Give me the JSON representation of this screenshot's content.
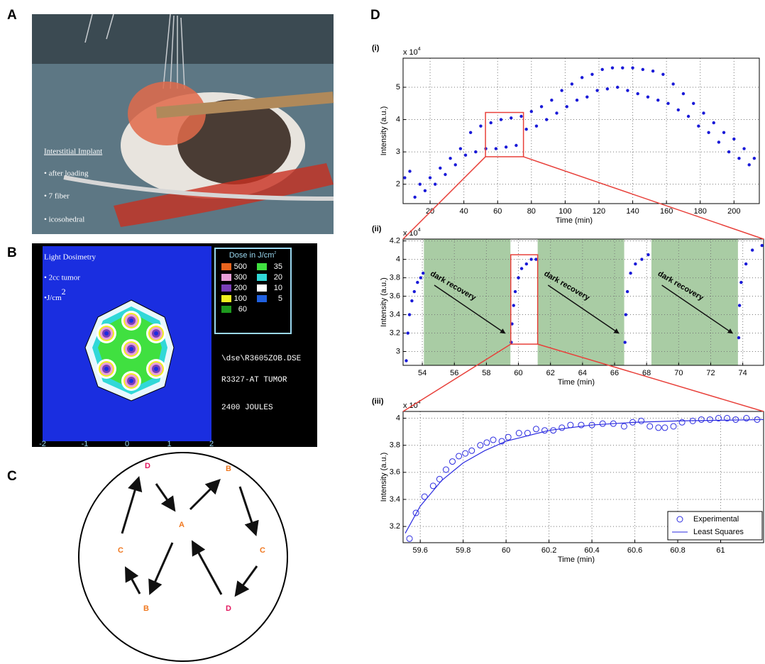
{
  "panel_a": {
    "label": "A",
    "texts": [
      "Interstitial Implant",
      "• after loading",
      "• 7 fiber",
      "• icosohedral"
    ]
  },
  "panel_b": {
    "label": "B",
    "title": "Light Dosimetry",
    "lines": [
      "• 2cc  tumor",
      "•J/cm"
    ],
    "superscript": "2",
    "legend_title": "Dose in J/cm",
    "legend_superscript": "2",
    "legend": [
      {
        "value": 500,
        "color": "#e8641e"
      },
      {
        "value": 35,
        "color": "#40e040"
      },
      {
        "value": 300,
        "color": "#e8a0d8"
      },
      {
        "value": 20,
        "color": "#30d8d8"
      },
      {
        "value": 200,
        "color": "#7a3fb8"
      },
      {
        "value": 10,
        "color": "#ffffff"
      },
      {
        "value": 100,
        "color": "#f0f020"
      },
      {
        "value": 5,
        "color": "#2060e0"
      },
      {
        "value": 60,
        "color": "#1e9a1e"
      }
    ],
    "file": "\\dse\\R3605ZOB.DSE",
    "tumor": "R3327-AT TUMOR",
    "energy": "2400 JOULES",
    "axis_ticks": [
      -2,
      -1,
      0,
      1,
      2
    ]
  },
  "panel_c": {
    "label": "C",
    "nodes": [
      {
        "label": "D",
        "color": "#e3175f"
      },
      {
        "label": "B",
        "color": "#f07820"
      },
      {
        "label": "C",
        "color": "#f07820"
      },
      {
        "label": "A",
        "color": "#f07820"
      },
      {
        "label": "C",
        "color": "#f07820"
      },
      {
        "label": "B",
        "color": "#f07820"
      },
      {
        "label": "D",
        "color": "#e3175f"
      }
    ]
  },
  "panel_d": {
    "label": "D"
  },
  "chart_data": [
    {
      "type": "scatter",
      "panel": "(i)",
      "y_multiplier": {
        "base": "x 10",
        "exponent": "4"
      },
      "xlabel": "Time (min)",
      "ylabel": "Intensity (a.u.)",
      "color": "#1a1ad8",
      "grid": true,
      "x": [
        5,
        8,
        11,
        14,
        17,
        20,
        23,
        26,
        29,
        32,
        35,
        38,
        41,
        44,
        47,
        50,
        53,
        56,
        59,
        62,
        65,
        68,
        71,
        74,
        77,
        80,
        83,
        86,
        89,
        92,
        95,
        98,
        101,
        104,
        107,
        110,
        113,
        116,
        119,
        122,
        125,
        128,
        131,
        134,
        137,
        140,
        143,
        146,
        149,
        152,
        155,
        158,
        161,
        164,
        167,
        170,
        173,
        176,
        179,
        182,
        185,
        188,
        191,
        194,
        197,
        200,
        203,
        206,
        209,
        212
      ],
      "values": [
        2.2,
        2.4,
        1.6,
        2.0,
        1.8,
        2.2,
        2.0,
        2.5,
        2.3,
        2.8,
        2.6,
        3.1,
        2.9,
        3.6,
        3.0,
        3.8,
        3.1,
        3.9,
        3.1,
        4.0,
        3.15,
        4.05,
        3.2,
        4.1,
        3.7,
        4.25,
        3.8,
        4.4,
        4.0,
        4.6,
        4.2,
        4.9,
        4.4,
        5.1,
        4.6,
        5.3,
        4.7,
        5.4,
        4.9,
        5.55,
        4.95,
        5.6,
        5.0,
        5.6,
        4.9,
        5.6,
        4.8,
        5.55,
        4.7,
        5.5,
        4.6,
        5.4,
        4.5,
        5.1,
        4.3,
        4.8,
        4.1,
        4.5,
        3.8,
        4.2,
        3.6,
        3.9,
        3.3,
        3.6,
        3.0,
        3.4,
        2.8,
        3.1,
        2.6,
        2.8
      ],
      "xlim": [
        4,
        215
      ],
      "xticks": [
        20,
        40,
        60,
        80,
        100,
        120,
        140,
        160,
        180,
        200
      ],
      "ylim": [
        1.4,
        5.9
      ],
      "yticks": [
        2,
        3,
        4,
        5
      ]
    },
    {
      "type": "scatter",
      "panel": "(ii)",
      "y_multiplier": {
        "base": "x 10",
        "exponent": "4"
      },
      "xlabel": "Time (min)",
      "ylabel": "Intensity (a.u.)",
      "color": "#1a1ad8",
      "grid": true,
      "x": [
        53.0,
        53.1,
        53.2,
        53.35,
        53.5,
        53.7,
        53.9,
        54.05,
        59.55,
        59.6,
        59.7,
        59.8,
        60.0,
        60.2,
        60.5,
        60.8,
        61.1,
        66.65,
        66.7,
        66.8,
        67.0,
        67.3,
        67.7,
        68.1,
        73.75,
        73.8,
        73.9,
        74.2,
        74.6,
        75.2
      ],
      "values": [
        2.9,
        3.2,
        3.4,
        3.55,
        3.65,
        3.75,
        3.8,
        3.85,
        3.1,
        3.3,
        3.5,
        3.65,
        3.8,
        3.9,
        3.95,
        4.0,
        4.0,
        3.1,
        3.4,
        3.65,
        3.85,
        3.95,
        4.0,
        4.05,
        3.15,
        3.5,
        3.75,
        3.95,
        4.1,
        4.15
      ],
      "shaded": [
        [
          54.1,
          59.5
        ],
        [
          61.2,
          66.6
        ],
        [
          68.3,
          73.7
        ]
      ],
      "shade_color": "#a9cca4",
      "annotations": [
        "dark recovery",
        "dark recovery",
        "dark recovery"
      ],
      "xlim": [
        52.8,
        75.3
      ],
      "xticks": [
        54,
        56,
        58,
        60,
        62,
        64,
        66,
        68,
        70,
        72,
        74
      ],
      "ylim": [
        2.85,
        4.22
      ],
      "yticks": [
        3,
        3.2,
        3.4,
        3.6,
        3.8,
        4,
        4.2
      ]
    },
    {
      "type": "scatter",
      "panel": "(iii)",
      "y_multiplier": {
        "base": "x 10",
        "exponent": "4"
      },
      "xlabel": "Time (min)",
      "ylabel": "Intensity (a.u.)",
      "grid": true,
      "legend": "lower right",
      "series": [
        {
          "name": "Experimental",
          "color": "#2a2ae0",
          "marker": "open-circle",
          "x": [
            59.55,
            59.58,
            59.62,
            59.66,
            59.69,
            59.72,
            59.75,
            59.78,
            59.81,
            59.84,
            59.88,
            59.91,
            59.94,
            59.98,
            60.01,
            60.06,
            60.1,
            60.14,
            60.18,
            60.22,
            60.26,
            60.3,
            60.35,
            60.4,
            60.45,
            60.5,
            60.55,
            60.59,
            60.63,
            60.67,
            60.71,
            60.74,
            60.78,
            60.82,
            60.87,
            60.91,
            60.95,
            60.99,
            61.03,
            61.07,
            61.12,
            61.17
          ],
          "values": [
            3.11,
            3.3,
            3.42,
            3.5,
            3.55,
            3.62,
            3.68,
            3.72,
            3.74,
            3.76,
            3.8,
            3.82,
            3.84,
            3.83,
            3.86,
            3.89,
            3.89,
            3.92,
            3.91,
            3.91,
            3.93,
            3.95,
            3.95,
            3.95,
            3.96,
            3.96,
            3.94,
            3.97,
            3.98,
            3.94,
            3.93,
            3.93,
            3.94,
            3.97,
            3.98,
            3.99,
            3.99,
            4.0,
            4.0,
            3.99,
            4.0,
            3.99
          ]
        },
        {
          "name": "Least Squares",
          "color": "#2a2ae0",
          "marker": "line",
          "x": [
            59.53,
            59.6,
            59.7,
            59.8,
            59.9,
            60,
            60.2,
            60.4,
            60.6,
            60.8,
            61,
            61.2
          ],
          "values": [
            3.15,
            3.35,
            3.54,
            3.67,
            3.76,
            3.83,
            3.91,
            3.95,
            3.97,
            3.98,
            3.985,
            3.99
          ]
        }
      ],
      "xlim": [
        59.52,
        61.2
      ],
      "xticks": [
        59.6,
        59.8,
        60,
        60.2,
        60.4,
        60.6,
        60.8,
        61
      ],
      "ylim": [
        3.08,
        4.05
      ],
      "yticks": [
        3.2,
        3.4,
        3.6,
        3.8,
        4
      ]
    }
  ]
}
